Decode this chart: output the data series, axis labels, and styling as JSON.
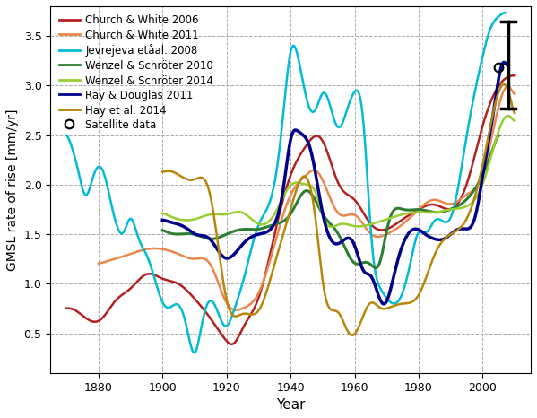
{
  "title": "",
  "xlabel": "Year",
  "ylabel": "GMSL rate of rise [mm/yr]",
  "xlim": [
    1865,
    2015
  ],
  "ylim": [
    0.1,
    3.8
  ],
  "yticks": [
    0.5,
    1.0,
    1.5,
    2.0,
    2.5,
    3.0,
    3.5
  ],
  "xticks": [
    1880,
    1900,
    1920,
    1940,
    1960,
    1980,
    2000
  ],
  "colors": {
    "church2006": "#b22222",
    "church2011": "#e8884d",
    "jevrejeva": "#00bcd4",
    "wenzel2010": "#2e7d32",
    "wenzel2014": "#9acd32",
    "ray": "#00008b",
    "hay": "#b8860b"
  },
  "satellite_point": [
    2005,
    3.18
  ],
  "error_bar_x": 2008,
  "error_bar_center": 2.8,
  "error_bar_low": 2.77,
  "error_bar_high": 3.65,
  "error_bar_width": 0.003,
  "background": "#ffffff",
  "grid_color": "#aaaaaa",
  "legend_labels": [
    "Church & White 2006",
    "Church & White 2011",
    "Jevrejeva etåal. 2008",
    "Wenzel & Schröter 2010",
    "Wenzel & Schröter 2014",
    "Ray & Douglas 2011",
    "Hay et al. 2014",
    "Satellite data"
  ]
}
